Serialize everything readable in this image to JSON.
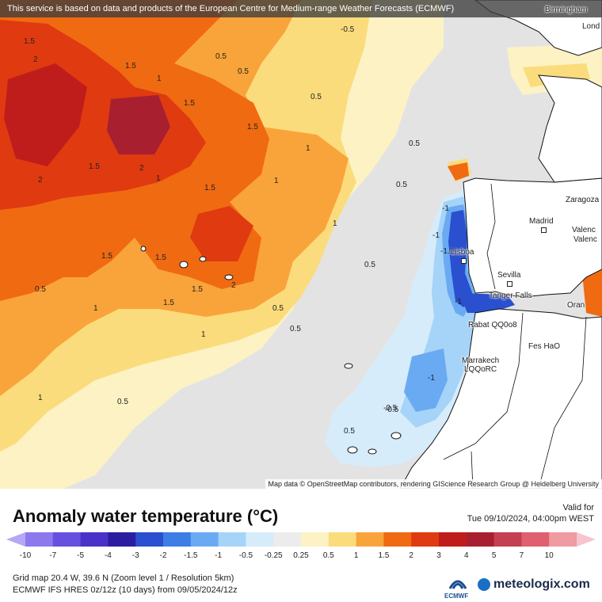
{
  "map": {
    "disclaimer": "This service is based on data and products of the European Centre for Medium-range Weather Forecasts (ECMWF)",
    "attribution": "Map data © OpenStreetMap contributors, rendering GIScience Research Group @ Heidelberg University",
    "cities": [
      {
        "name": "Birmingham"
      },
      {
        "name": "Lond"
      },
      {
        "name": "Zaragoza"
      },
      {
        "name": "Madrid"
      },
      {
        "name": "Valenc"
      },
      {
        "name": "Valenc"
      },
      {
        "name": "Lisboa"
      },
      {
        "name": "Sevilla"
      },
      {
        "name": "Tanger Falls"
      },
      {
        "name": "Oran"
      },
      {
        "name": "Rabat QQ0o8"
      },
      {
        "name": "Fes HaO"
      },
      {
        "name": "Marrakech"
      },
      {
        "name": "LQQoRC"
      }
    ],
    "contour_labels": [
      "2",
      "1.5",
      "2",
      "1.5",
      "1",
      "1.5",
      "1.5",
      "2",
      "1.5",
      "1.5",
      "2",
      "1.5",
      "1",
      "1.5",
      "1",
      "0.5",
      "0.5",
      "0.5",
      "0.5",
      "0.5",
      "1",
      "1",
      "0.5",
      "0.5",
      "1.5",
      "1.5",
      "1",
      "0.5",
      "1",
      "0.5",
      "1",
      "0.5",
      "0.5",
      "-0.5",
      "-1",
      "-1.5",
      "-1",
      "-1",
      "-1",
      "-0.5",
      "-0.5"
    ]
  },
  "legend": {
    "title": "Anomaly water temperature (°C)",
    "valid_label": "Valid for",
    "valid_time": "Tue 09/10/2024, 04:00pm WEST",
    "ticks": [
      "-10",
      "-7",
      "-5",
      "-4",
      "-3",
      "-2",
      "-1.5",
      "-1",
      "-0.5",
      "-0.25",
      "0.25",
      "0.5",
      "1",
      "1.5",
      "2",
      "3",
      "4",
      "5",
      "7",
      "10"
    ],
    "colors": [
      "#b7a7f4",
      "#8d78ee",
      "#6650e0",
      "#4a32c8",
      "#2b1da0",
      "#2a4fcf",
      "#3d7ee6",
      "#6aaaf2",
      "#a6d3f8",
      "#d6ecfb",
      "#ececec",
      "#fdf2c4",
      "#fbdc7c",
      "#f9a43a",
      "#f06a12",
      "#e03a10",
      "#bf1d1b",
      "#a8202f",
      "#c44050",
      "#e06070",
      "#f09aa2",
      "#f8c4d0"
    ],
    "grid_info": "Grid map 20.4 W, 39.6 N (Zoom level 1 / Resolution 5km)",
    "model_info": "ECMWF IFS HRES 0z/12z (10 days) from 09/05/2024/12z",
    "ecmwf_label": "ECMWF",
    "brand": "meteologix.com"
  }
}
